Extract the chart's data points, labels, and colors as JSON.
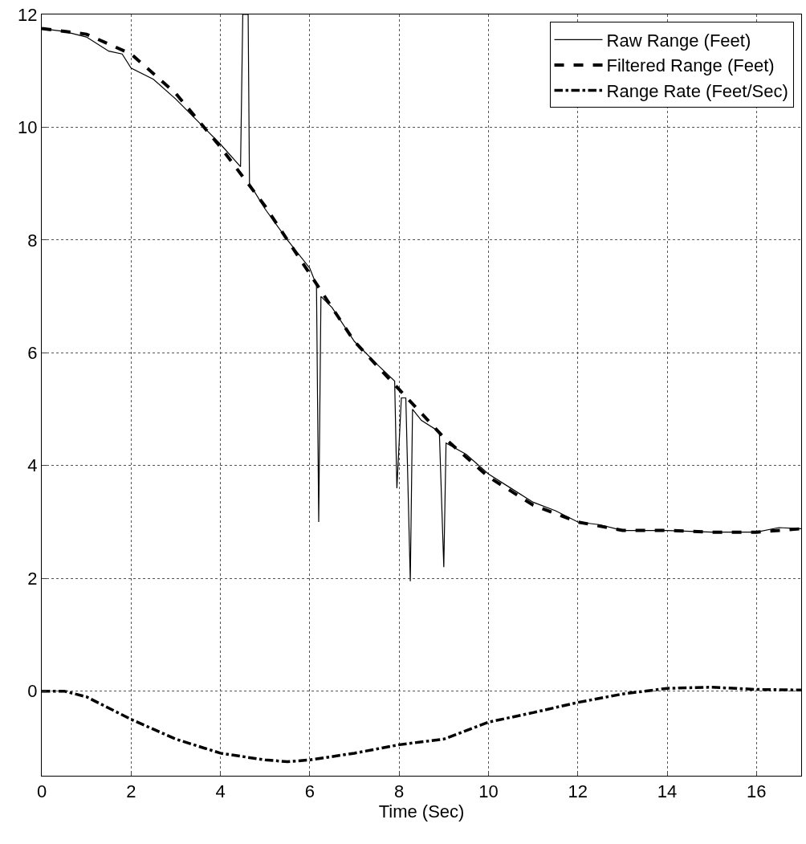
{
  "chart_data": {
    "type": "line",
    "xlabel": "Time (Sec)",
    "xlim": [
      0,
      17
    ],
    "xticks": [
      0,
      2,
      4,
      6,
      8,
      10,
      12,
      14,
      16
    ],
    "ylim": [
      -1.5,
      12
    ],
    "yticks": [
      0,
      2,
      4,
      6,
      8,
      10,
      12
    ],
    "grid": true,
    "legend": "top right",
    "series": [
      {
        "name": "Raw Range (Feet)",
        "color": "#000000",
        "line_style": "solid",
        "x": [
          0,
          0.5,
          1,
          1.5,
          1.8,
          2,
          2.5,
          3,
          3.5,
          4,
          4.45,
          4.5,
          4.55,
          4.62,
          4.65,
          5,
          5.5,
          6,
          6.15,
          6.2,
          6.25,
          6.5,
          7,
          7.5,
          7.9,
          7.95,
          8.05,
          8.15,
          8.25,
          8.3,
          8.5,
          8.9,
          9.0,
          9.05,
          9.5,
          10,
          10.5,
          11,
          11.5,
          12,
          12.5,
          13,
          14,
          15,
          16,
          16.5,
          17
        ],
        "values": [
          11.75,
          11.7,
          11.6,
          11.35,
          11.3,
          11.05,
          10.85,
          10.5,
          10.1,
          9.7,
          9.3,
          12,
          12,
          12,
          9.0,
          8.55,
          8.0,
          7.5,
          7.2,
          3.0,
          7.0,
          6.8,
          6.2,
          5.8,
          5.5,
          3.6,
          5.2,
          5.2,
          1.95,
          5.0,
          4.8,
          4.6,
          2.2,
          4.4,
          4.2,
          3.85,
          3.6,
          3.35,
          3.2,
          3.0,
          2.95,
          2.85,
          2.85,
          2.82,
          2.82,
          2.9,
          2.88
        ]
      },
      {
        "name": "Filtered Range (Feet)",
        "color": "#000000",
        "line_style": "dashed",
        "x": [
          0,
          1,
          2,
          3,
          4,
          5,
          6,
          7,
          8,
          9,
          10,
          11,
          12,
          13,
          14,
          15,
          16,
          17
        ],
        "values": [
          11.75,
          11.65,
          11.3,
          10.6,
          9.65,
          8.6,
          7.4,
          6.2,
          5.35,
          4.5,
          3.8,
          3.3,
          3.0,
          2.85,
          2.85,
          2.82,
          2.82,
          2.88
        ]
      },
      {
        "name": "Range Rate (Feet/Sec)",
        "color": "#000000",
        "line_style": "dashdot",
        "x": [
          0,
          0.5,
          1,
          1.5,
          2,
          3,
          4,
          5,
          5.5,
          6,
          7,
          8,
          9,
          10,
          11,
          12,
          13,
          14,
          15,
          16,
          17
        ],
        "values": [
          0,
          0,
          -0.1,
          -0.3,
          -0.5,
          -0.85,
          -1.1,
          -1.22,
          -1.25,
          -1.22,
          -1.1,
          -0.95,
          -0.85,
          -0.55,
          -0.38,
          -0.2,
          -0.05,
          0.05,
          0.07,
          0.03,
          0.02
        ]
      }
    ]
  }
}
